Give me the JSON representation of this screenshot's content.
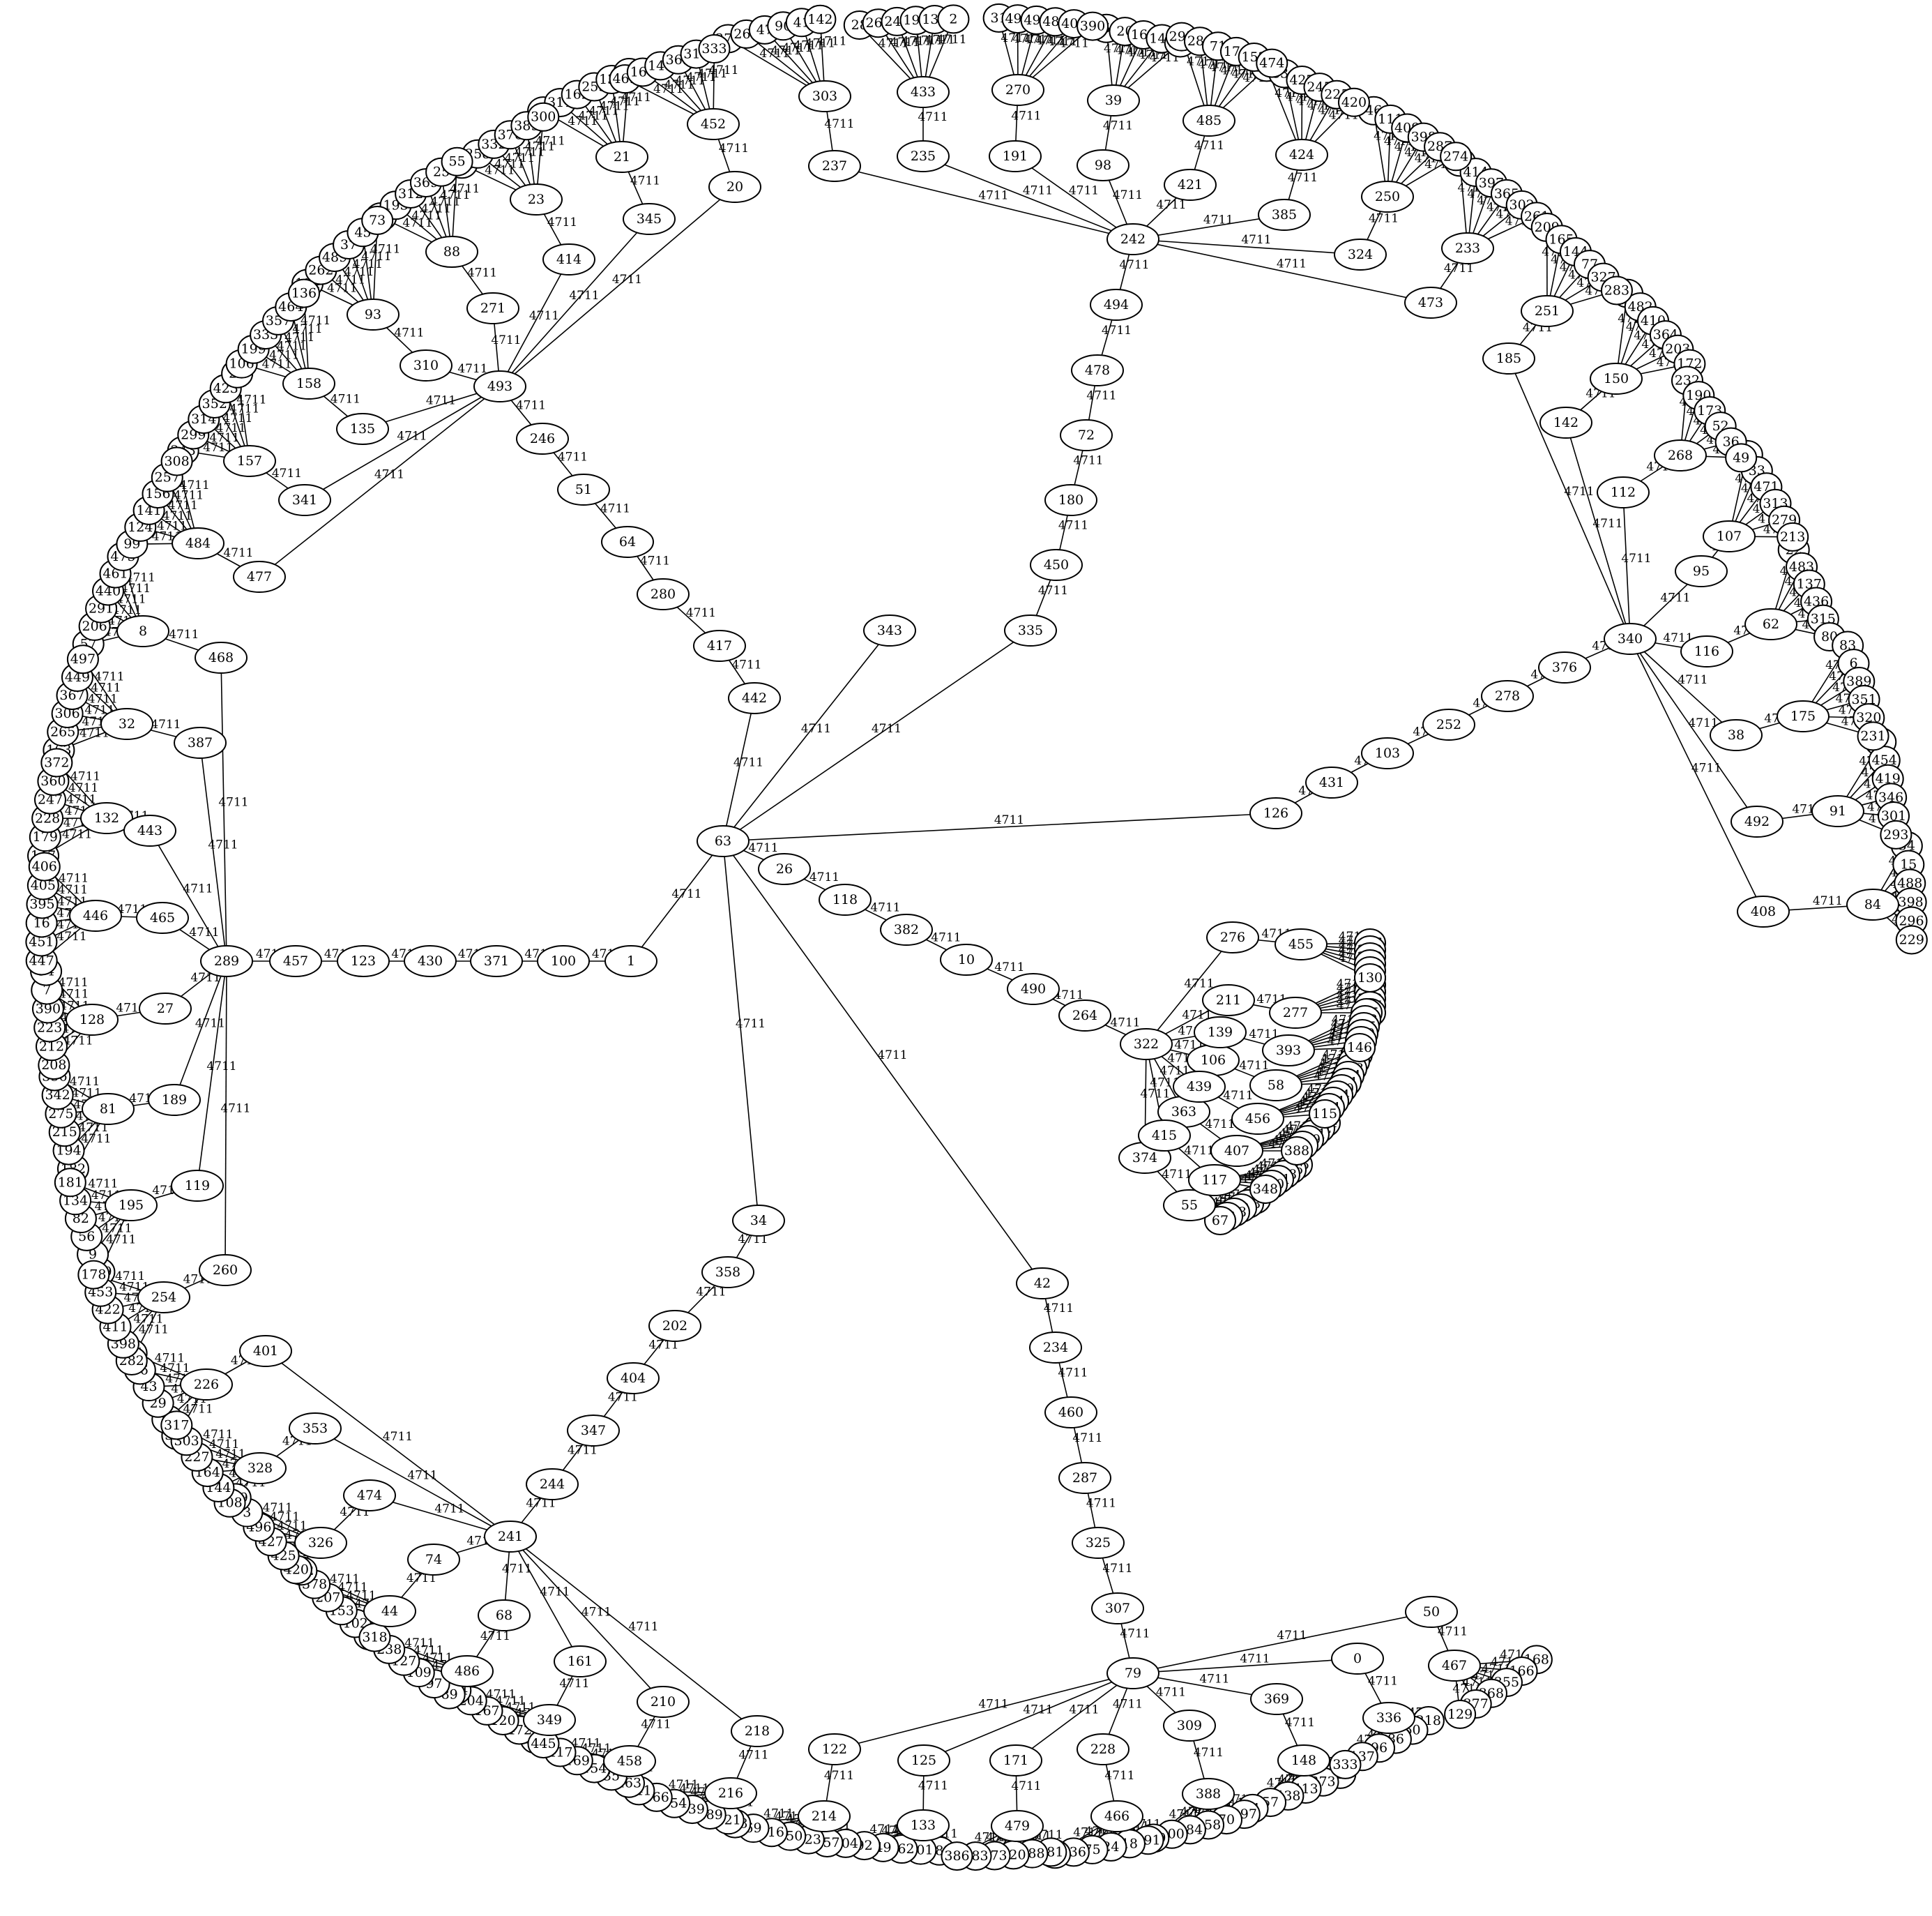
{
  "graph": {
    "edge_weight": "4711",
    "edges": [
      [
        "1",
        "100"
      ],
      [
        "100",
        "371"
      ],
      [
        "371",
        "430"
      ],
      [
        "430",
        "123"
      ],
      [
        "123",
        "457"
      ],
      [
        "457",
        "289"
      ],
      [
        "289",
        "468"
      ],
      [
        "289",
        "387"
      ],
      [
        "289",
        "443"
      ],
      [
        "289",
        "465"
      ],
      [
        "289",
        "27"
      ],
      [
        "289",
        "189"
      ],
      [
        "289",
        "119"
      ],
      [
        "289",
        "260"
      ],
      [
        "1",
        "63"
      ],
      [
        "63",
        "343"
      ],
      [
        "63",
        "335"
      ],
      [
        "63",
        "442"
      ],
      [
        "63",
        "126"
      ],
      [
        "63",
        "26"
      ],
      [
        "63",
        "34"
      ],
      [
        "63",
        "42"
      ],
      [
        "442",
        "417"
      ],
      [
        "417",
        "280"
      ],
      [
        "280",
        "64"
      ],
      [
        "64",
        "51"
      ],
      [
        "51",
        "246"
      ],
      [
        "246",
        "493"
      ],
      [
        "493",
        "310"
      ],
      [
        "493",
        "271"
      ],
      [
        "493",
        "414"
      ],
      [
        "493",
        "345"
      ],
      [
        "493",
        "20"
      ],
      [
        "493",
        "135"
      ],
      [
        "493",
        "341"
      ],
      [
        "493",
        "477"
      ],
      [
        "310",
        "93"
      ],
      [
        "271",
        "88"
      ],
      [
        "414",
        "23"
      ],
      [
        "345",
        "21"
      ],
      [
        "20",
        "452"
      ],
      [
        "135",
        "158"
      ],
      [
        "341",
        "157"
      ],
      [
        "477",
        "484"
      ],
      [
        "335",
        "450"
      ],
      [
        "450",
        "180"
      ],
      [
        "180",
        "72"
      ],
      [
        "72",
        "478"
      ],
      [
        "478",
        "494"
      ],
      [
        "494",
        "242"
      ],
      [
        "242",
        "237"
      ],
      [
        "242",
        "235"
      ],
      [
        "242",
        "191"
      ],
      [
        "242",
        "98"
      ],
      [
        "242",
        "421"
      ],
      [
        "242",
        "385"
      ],
      [
        "242",
        "324"
      ],
      [
        "242",
        "473"
      ],
      [
        "237",
        "303"
      ],
      [
        "235",
        "433"
      ],
      [
        "191",
        "270"
      ],
      [
        "98",
        "39"
      ],
      [
        "421",
        "485"
      ],
      [
        "385",
        "424"
      ],
      [
        "324",
        "250"
      ],
      [
        "473",
        "233"
      ],
      [
        "126",
        "431"
      ],
      [
        "431",
        "103"
      ],
      [
        "103",
        "252"
      ],
      [
        "252",
        "278"
      ],
      [
        "278",
        "376"
      ],
      [
        "376",
        "340"
      ],
      [
        "340",
        "185"
      ],
      [
        "340",
        "142"
      ],
      [
        "340",
        "112"
      ],
      [
        "340",
        "95"
      ],
      [
        "340",
        "116"
      ],
      [
        "340",
        "38"
      ],
      [
        "340",
        "492"
      ],
      [
        "340",
        "408"
      ],
      [
        "185",
        "251"
      ],
      [
        "142",
        "150"
      ],
      [
        "112",
        "268"
      ],
      [
        "95",
        "107"
      ],
      [
        "116",
        "62"
      ],
      [
        "38",
        "175"
      ],
      [
        "492",
        "91"
      ],
      [
        "408",
        "84"
      ],
      [
        "26",
        "118"
      ],
      [
        "118",
        "382"
      ],
      [
        "382",
        "10"
      ],
      [
        "10",
        "490"
      ],
      [
        "490",
        "264"
      ],
      [
        "264",
        "322"
      ],
      [
        "322",
        "276"
      ],
      [
        "322",
        "211"
      ],
      [
        "322",
        "139"
      ],
      [
        "322",
        "106"
      ],
      [
        "322",
        "439"
      ],
      [
        "322",
        "363"
      ],
      [
        "322",
        "415"
      ],
      [
        "322",
        "374"
      ],
      [
        "276",
        "455"
      ],
      [
        "211",
        "277"
      ],
      [
        "139",
        "393"
      ],
      [
        "106",
        "58"
      ],
      [
        "439",
        "456"
      ],
      [
        "363",
        "407"
      ],
      [
        "415",
        "117"
      ],
      [
        "374",
        "55"
      ],
      [
        "34",
        "358"
      ],
      [
        "358",
        "202"
      ],
      [
        "202",
        "404"
      ],
      [
        "404",
        "347"
      ],
      [
        "347",
        "244"
      ],
      [
        "244",
        "241"
      ],
      [
        "241",
        "401"
      ],
      [
        "241",
        "353"
      ],
      [
        "241",
        "474"
      ],
      [
        "241",
        "74"
      ],
      [
        "241",
        "68"
      ],
      [
        "241",
        "161"
      ],
      [
        "241",
        "210"
      ],
      [
        "241",
        "218"
      ],
      [
        "401",
        "226"
      ],
      [
        "353",
        "328"
      ],
      [
        "474",
        "326"
      ],
      [
        "74",
        "44"
      ],
      [
        "68",
        "486"
      ],
      [
        "161",
        "349"
      ],
      [
        "210",
        "458"
      ],
      [
        "218",
        "216"
      ],
      [
        "42",
        "234"
      ],
      [
        "234",
        "460"
      ],
      [
        "460",
        "287"
      ],
      [
        "287",
        "325"
      ],
      [
        "325",
        "307"
      ],
      [
        "307",
        "79"
      ],
      [
        "79",
        "50"
      ],
      [
        "79",
        "0"
      ],
      [
        "79",
        "369"
      ],
      [
        "79",
        "309"
      ],
      [
        "79",
        "228"
      ],
      [
        "79",
        "171"
      ],
      [
        "79",
        "125"
      ],
      [
        "79",
        "122"
      ],
      [
        "50",
        "467"
      ],
      [
        "0",
        "336"
      ],
      [
        "369",
        "148"
      ],
      [
        "309",
        "388"
      ],
      [
        "228",
        "466"
      ],
      [
        "171",
        "479"
      ],
      [
        "125",
        "133"
      ],
      [
        "122",
        "214"
      ]
    ]
  }
}
